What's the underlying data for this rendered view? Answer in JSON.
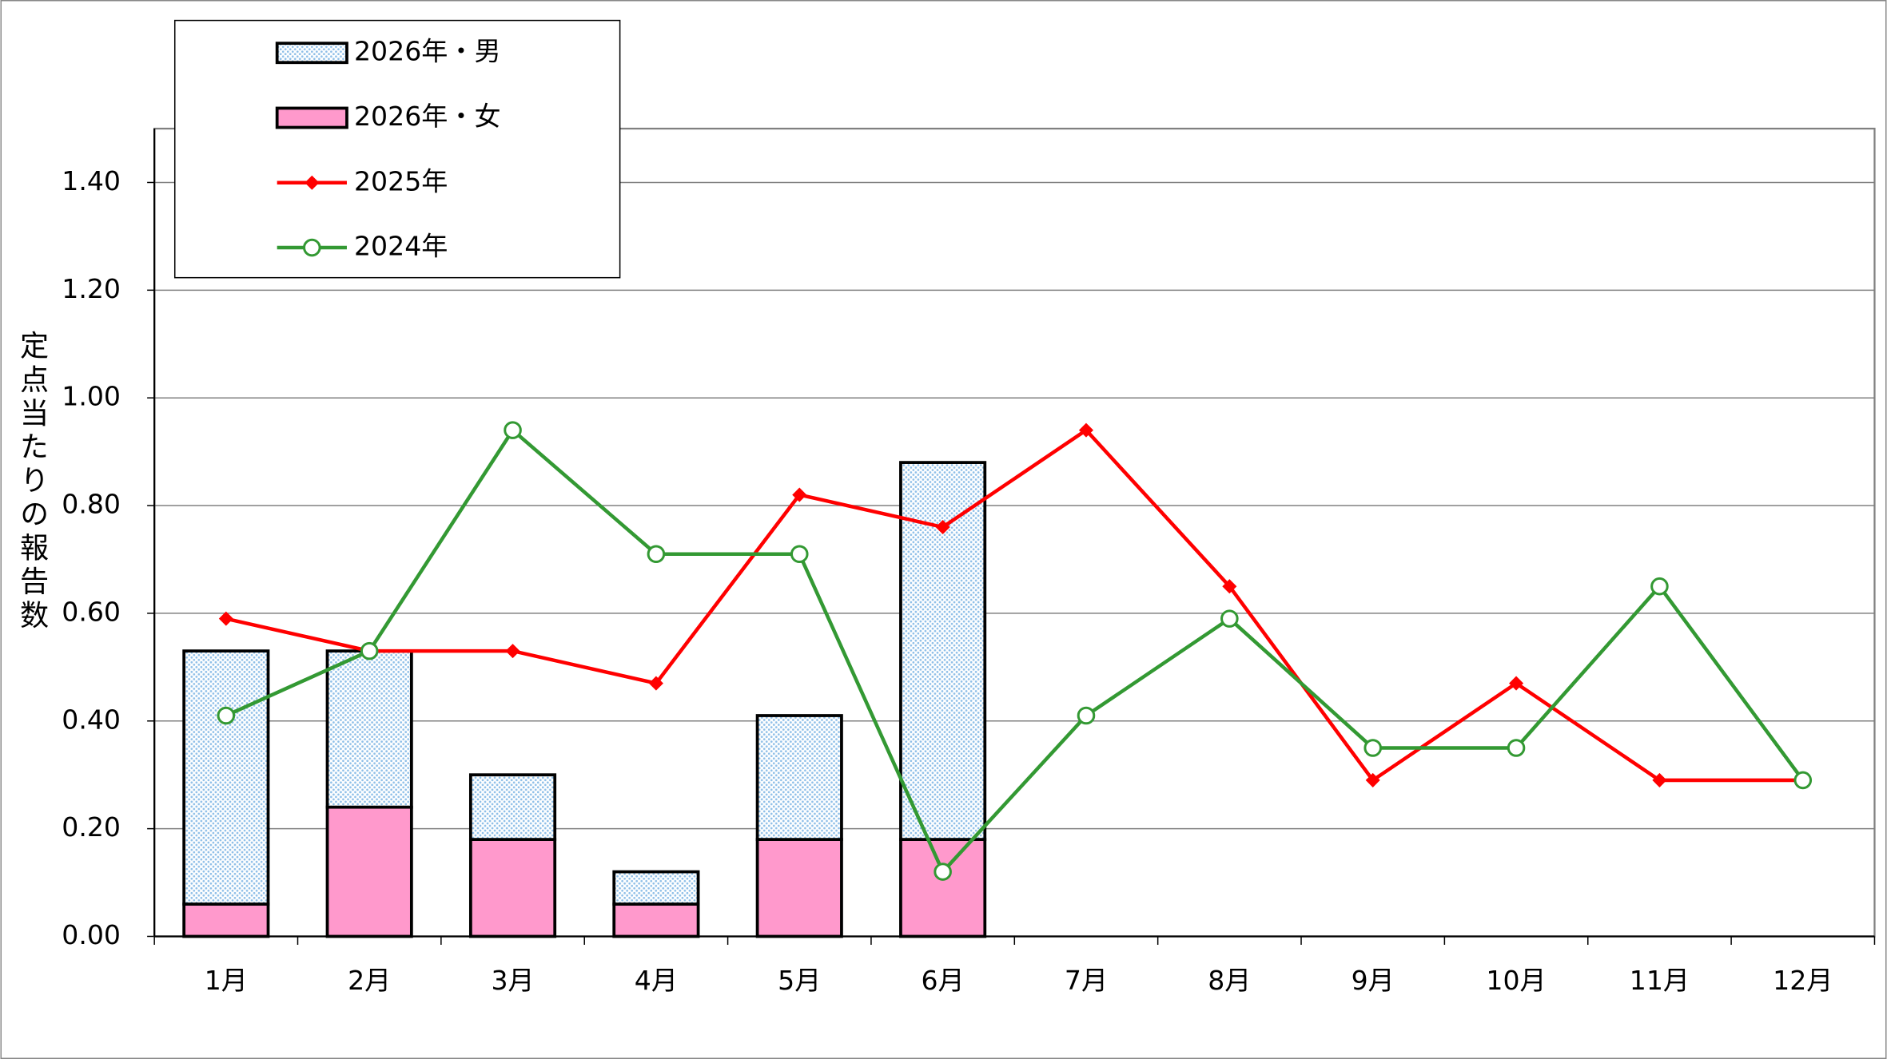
{
  "chart_data": {
    "type": "bar-line",
    "y_label": "定点当たりの報告数",
    "categories": [
      "1月",
      "2月",
      "3月",
      "4月",
      "5月",
      "6月",
      "7月",
      "8月",
      "9月",
      "10月",
      "11月",
      "12月"
    ],
    "series": [
      {
        "name": "2026年・女",
        "type": "bar",
        "color": "#ff99cc",
        "values": [
          0.06,
          0.24,
          0.18,
          0.06,
          0.18,
          0.18,
          null,
          null,
          null,
          null,
          null,
          null
        ]
      },
      {
        "name": "2026年・男",
        "type": "bar",
        "color": "#cfe3f5",
        "values": [
          0.47,
          0.29,
          0.12,
          0.06,
          0.23,
          0.7,
          null,
          null,
          null,
          null,
          null,
          null
        ]
      },
      {
        "name": "2025年",
        "type": "line",
        "color": "#ff0000",
        "marker": "diamond",
        "values": [
          0.59,
          0.53,
          0.53,
          0.47,
          0.82,
          0.76,
          0.94,
          0.65,
          0.29,
          0.47,
          0.29,
          0.29
        ]
      },
      {
        "name": "2024年",
        "type": "line",
        "color": "#339933",
        "marker": "circle",
        "values": [
          0.41,
          0.53,
          0.94,
          0.71,
          0.71,
          0.12,
          0.41,
          0.59,
          0.35,
          0.35,
          0.65,
          0.29
        ]
      }
    ],
    "legend_order": [
      1,
      0,
      2,
      3
    ],
    "legend": "upper left",
    "ylim": [
      0,
      1.5
    ],
    "yticks": [
      {
        "value": 0,
        "label": "0.00"
      },
      {
        "value": 0.2,
        "label": "0.20"
      },
      {
        "value": 0.4,
        "label": "0.40"
      },
      {
        "value": 0.6,
        "label": "0.60"
      },
      {
        "value": 0.8,
        "label": "0.80"
      },
      {
        "value": 1.0,
        "label": "1.00"
      },
      {
        "value": 1.2,
        "label": "1.20"
      },
      {
        "value": 1.4,
        "label": "1.40"
      }
    ],
    "grid": true
  }
}
